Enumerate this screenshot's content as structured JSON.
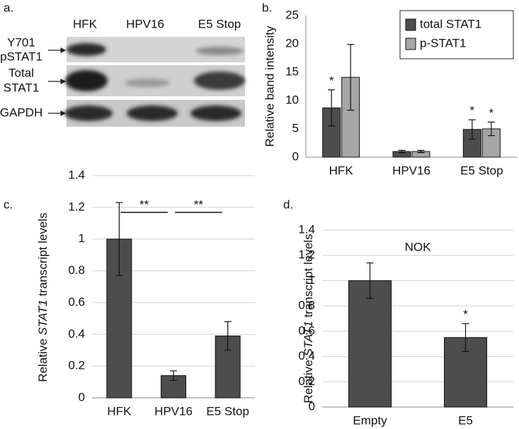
{
  "blot": {
    "panel_label": "a.",
    "lanes": [
      "HFK",
      "HPV16",
      "E5 Stop"
    ],
    "rows": [
      [
        "Y701",
        "pSTAT1"
      ],
      [
        "Total",
        "STAT1"
      ],
      [
        "GAPDH"
      ]
    ]
  },
  "chart_data": [
    {
      "type": "bar",
      "panel_label": "b.",
      "y_label": "Relative band intensity",
      "categories": [
        "HFK",
        "HPV16",
        "E5 Stop"
      ],
      "series": [
        {
          "name": "total STAT1",
          "color": "#4d4d4d",
          "values": [
            8.7,
            1.0,
            4.9
          ],
          "errors": [
            3.2,
            0.2,
            1.7
          ],
          "significance": [
            "*",
            null,
            "*"
          ]
        },
        {
          "name": "p-STAT1",
          "color": "#a6a6a6",
          "values": [
            14.1,
            1.0,
            5.0
          ],
          "errors": [
            5.8,
            0.2,
            1.2
          ],
          "significance": [
            null,
            null,
            "*"
          ]
        }
      ],
      "ylim": [
        0,
        25
      ],
      "yticks": [
        0,
        5,
        10,
        15,
        20,
        25
      ],
      "grid": false,
      "legend": "top-right"
    },
    {
      "type": "bar",
      "panel_label": "c.",
      "y_label_parts": [
        "Relative ",
        "STAT1",
        " transcript levels"
      ],
      "categories": [
        "HFK",
        "HPV16",
        "E5 Stop"
      ],
      "series": [
        {
          "color": "#4d4d4d",
          "values": [
            1.0,
            0.14,
            0.39
          ],
          "errors": [
            0.23,
            0.03,
            0.09
          ]
        }
      ],
      "comparisons": [
        {
          "label": "**",
          "from": "HFK",
          "to": "HPV16"
        },
        {
          "label": "**",
          "from": "HPV16",
          "to": "E5 Stop"
        }
      ],
      "ylim": [
        0,
        1.4
      ],
      "yticks": [
        0,
        0.2,
        0.4,
        0.6,
        0.8,
        1,
        1.2,
        1.4
      ],
      "grid": true
    },
    {
      "type": "bar",
      "panel_label": "d.",
      "y_label_parts": [
        "Relative ",
        "STAT1",
        " transcript levels"
      ],
      "annotation": "NOK",
      "categories": [
        "Empty",
        "E5"
      ],
      "series": [
        {
          "color": "#4d4d4d",
          "values": [
            1.0,
            0.55
          ],
          "errors": [
            0.14,
            0.11
          ],
          "significance": [
            null,
            "*"
          ]
        }
      ],
      "ylim": [
        0,
        1.4
      ],
      "yticks": [
        0,
        0.2,
        0.4,
        0.6,
        0.8,
        1,
        1.2,
        1.4
      ],
      "grid": true
    }
  ]
}
